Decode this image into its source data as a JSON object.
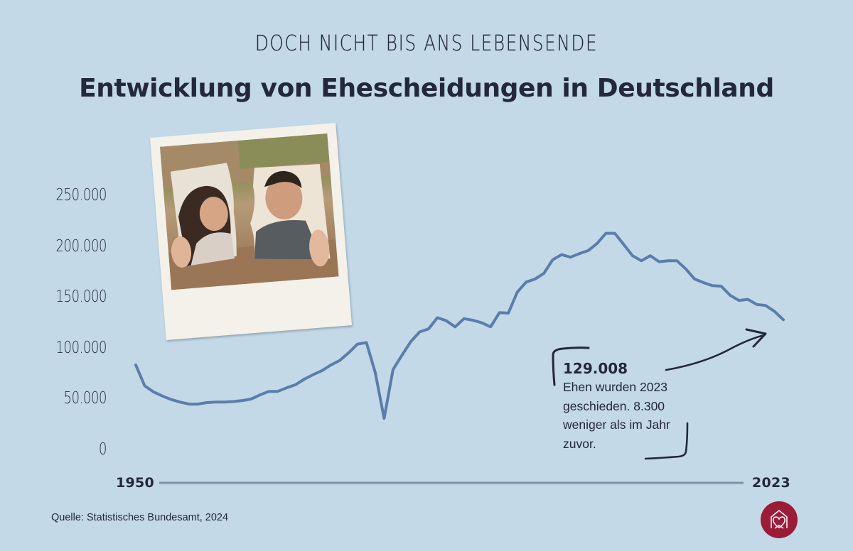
{
  "header": {
    "kicker": "DOCH NICHT BIS ANS LEBENSENDE",
    "title": "Entwicklung von Ehescheidungen in Deutschland"
  },
  "axis": {
    "y_ticks": [
      "250.000",
      "200.000",
      "150.000",
      "100.000",
      "50.000",
      "0"
    ],
    "x_start": "1950",
    "x_end": "2023"
  },
  "annotation": {
    "value": "129.008",
    "text": "Ehen wurden 2023 geschieden. 8.300 weniger als im Jahr zuvor."
  },
  "footer": {
    "source": "Quelle: Statistisches Bundesamt, 2024",
    "logo_icon": "house-heart-icon"
  },
  "photo": {
    "description": "torn-couple-photo"
  },
  "colors": {
    "background": "#c3d9e8",
    "line": "#5a7eab",
    "text": "#23283a",
    "axis": "#7a93a8",
    "logo": "#9c1c38"
  },
  "chart_data": {
    "type": "line",
    "title": "Entwicklung von Ehescheidungen in Deutschland",
    "subtitle": "DOCH NICHT BIS ANS LEBENSENDE",
    "xlabel": "",
    "ylabel": "",
    "ylim": [
      0,
      250000
    ],
    "y_ticks": [
      0,
      50000,
      100000,
      150000,
      200000,
      250000
    ],
    "x_tick_labels": [
      "1950",
      "2023"
    ],
    "grid": false,
    "legend": null,
    "x": [
      1950,
      1951,
      1952,
      1953,
      1954,
      1955,
      1956,
      1957,
      1958,
      1959,
      1960,
      1961,
      1962,
      1963,
      1964,
      1965,
      1966,
      1967,
      1968,
      1969,
      1970,
      1971,
      1972,
      1973,
      1974,
      1975,
      1976,
      1977,
      1978,
      1979,
      1980,
      1981,
      1982,
      1983,
      1984,
      1985,
      1986,
      1987,
      1988,
      1989,
      1990,
      1991,
      1992,
      1993,
      1994,
      1995,
      1996,
      1997,
      1998,
      1999,
      2000,
      2001,
      2002,
      2003,
      2004,
      2005,
      2006,
      2007,
      2008,
      2009,
      2010,
      2011,
      2012,
      2013,
      2014,
      2015,
      2016,
      2017,
      2018,
      2019,
      2020,
      2021,
      2022,
      2023
    ],
    "series": [
      {
        "name": "Ehescheidungen",
        "values": [
          84500,
          64000,
          58000,
          54000,
          50500,
          48000,
          46000,
          46000,
          47500,
          48000,
          48000,
          48500,
          49500,
          51000,
          55000,
          58500,
          58500,
          62000,
          65000,
          70500,
          75000,
          79000,
          84500,
          89000,
          96500,
          105000,
          106500,
          77000,
          32000,
          80000,
          94000,
          107500,
          117000,
          120000,
          131000,
          128000,
          122000,
          130000,
          128500,
          126000,
          122000,
          136000,
          135500,
          156000,
          166000,
          169000,
          174500,
          188000,
          193000,
          190500,
          194000,
          197000,
          204000,
          214000,
          214000,
          203000,
          192000,
          187000,
          192000,
          186000,
          187000,
          187000,
          179000,
          169000,
          165500,
          162500,
          162000,
          153000,
          148000,
          149000,
          144000,
          143000,
          137300,
          129008
        ]
      }
    ],
    "annotations": [
      {
        "x": 2023,
        "y": 129008,
        "label": "129.008",
        "text": "Ehen wurden 2023 geschieden. 8.300 weniger als im Jahr zuvor."
      }
    ],
    "source": "Quelle: Statistisches Bundesamt, 2024"
  }
}
